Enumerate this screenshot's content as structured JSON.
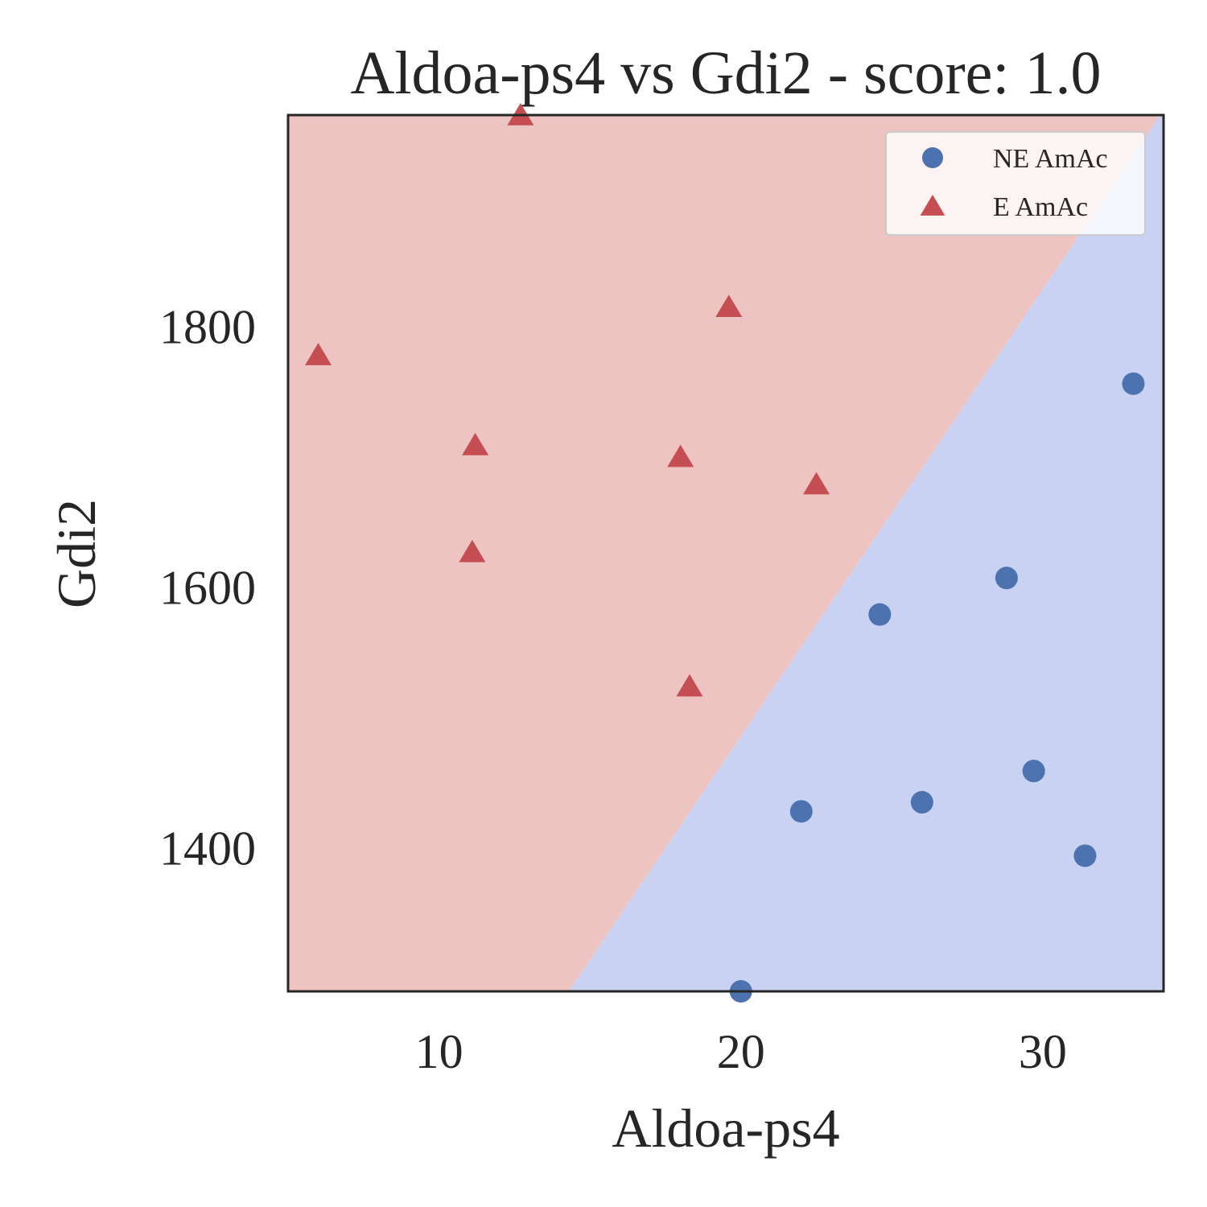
{
  "chart_data": {
    "type": "scatter",
    "title": "Aldoa-ps4 vs Gdi2 - score: 1.0",
    "xlabel": "Aldoa-ps4",
    "ylabel": "Gdi2",
    "xlim": [
      5.0,
      34.0
    ],
    "ylim": [
      1290,
      1962
    ],
    "xticks": [
      10,
      20,
      30
    ],
    "yticks": [
      1400,
      1600,
      1800
    ],
    "grid": false,
    "legend_position": "top-right",
    "decision_boundary": {
      "description": "linear classifier boundary",
      "points": [
        [
          14.3,
          1290
        ],
        [
          33.9,
          1962
        ]
      ],
      "regions": [
        {
          "class": "E AmAc",
          "side": "upper-left",
          "color": "#eec4c3"
        },
        {
          "class": "NE AmAc",
          "side": "lower-right",
          "color": "#c9d2f2"
        }
      ]
    },
    "series": [
      {
        "name": "NE AmAc",
        "marker": "circle",
        "color": "#4c72b0",
        "points": [
          [
            33.0,
            1756
          ],
          [
            28.8,
            1607
          ],
          [
            24.6,
            1579
          ],
          [
            29.7,
            1459
          ],
          [
            26.0,
            1435
          ],
          [
            22.0,
            1428
          ],
          [
            31.4,
            1394
          ],
          [
            20.0,
            1290
          ]
        ]
      },
      {
        "name": "E AmAc",
        "marker": "triangle",
        "color": "#c44e52",
        "points": [
          [
            12.7,
            1962
          ],
          [
            19.6,
            1815
          ],
          [
            6.0,
            1778
          ],
          [
            11.2,
            1709
          ],
          [
            18.0,
            1700
          ],
          [
            22.5,
            1679
          ],
          [
            11.1,
            1627
          ],
          [
            18.3,
            1524
          ]
        ]
      }
    ]
  }
}
